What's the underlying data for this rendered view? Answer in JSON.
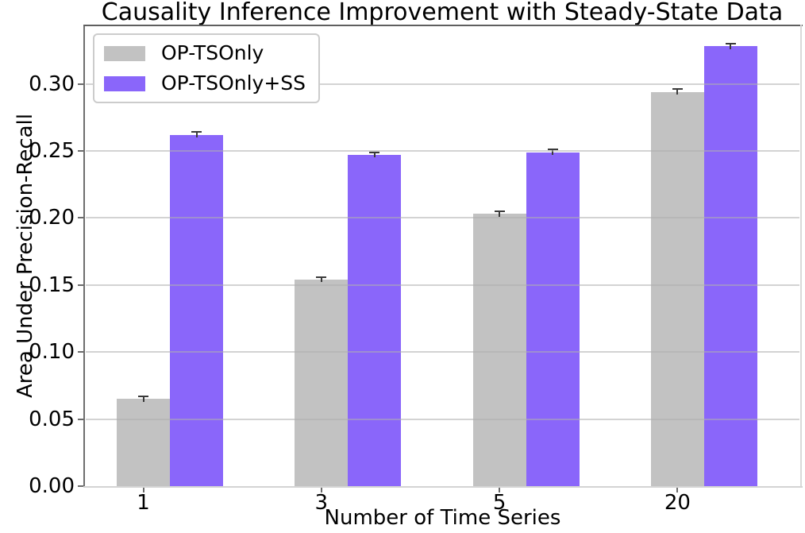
{
  "chart_data": {
    "type": "bar",
    "title": "Causality Inference Improvement with Steady-State Data",
    "xlabel": "Number of Time Series",
    "ylabel": "Area Under Precision-Recall",
    "categories": [
      "1",
      "3",
      "5",
      "20"
    ],
    "series": [
      {
        "name": "OP-TSOnly",
        "color": "#c2c2c2",
        "values": [
          0.065,
          0.154,
          0.203,
          0.294
        ],
        "errors": [
          0.002,
          0.002,
          0.002,
          0.002
        ]
      },
      {
        "name": "OP-TSOnly+SS",
        "color": "#8a66fa",
        "values": [
          0.262,
          0.247,
          0.249,
          0.328
        ],
        "errors": [
          0.002,
          0.002,
          0.002,
          0.002
        ]
      }
    ],
    "yticks": [
      "0.00",
      "0.05",
      "0.10",
      "0.15",
      "0.20",
      "0.25",
      "0.30"
    ],
    "ytick_values": [
      0,
      0.05,
      0.1,
      0.15,
      0.2,
      0.25,
      0.3
    ],
    "ylim": [
      0,
      0.343
    ],
    "grid": "horizontal",
    "gridline_color": "rgba(175,175,175,0.55)",
    "error_bar_color": "#3a3a3a",
    "legend_position": "upper-left",
    "legend_labels": [
      "OP-TSOnly",
      "OP-TSOnly+SS"
    ]
  }
}
